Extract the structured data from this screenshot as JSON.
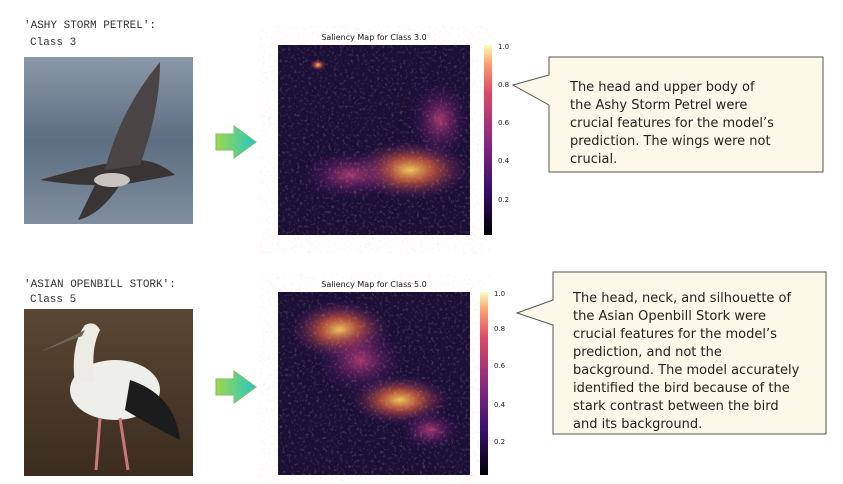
{
  "rows": [
    {
      "label": "'ASHY STORM PETREL':",
      "class_label": "Class 3",
      "map_title": "Saliency Map for Class 3.0",
      "colorbar_ticks": [
        "1.0",
        "0.8",
        "0.6",
        "0.4",
        "0.2"
      ],
      "caption_lines": [
        "The head and upper body of",
        "the Ashy Storm Petrel were",
        "crucial features for the model’s",
        "prediction. The wings were not",
        "crucial."
      ]
    },
    {
      "label": "'ASIAN OPENBILL STORK':",
      "class_label": "Class 5",
      "map_title": "Saliency Map for Class 5.0",
      "colorbar_ticks": [
        "1.0",
        "0.8",
        "0.6",
        "0.4",
        "0.2"
      ],
      "caption_lines": [
        "The head, neck, and silhouette of",
        "the Asian Openbill Stork were",
        "crucial features for the model’s",
        "prediction, and not the",
        "background. The model accurately",
        "identified the bird because of the",
        "stark contrast between the bird",
        "and its background."
      ]
    }
  ]
}
